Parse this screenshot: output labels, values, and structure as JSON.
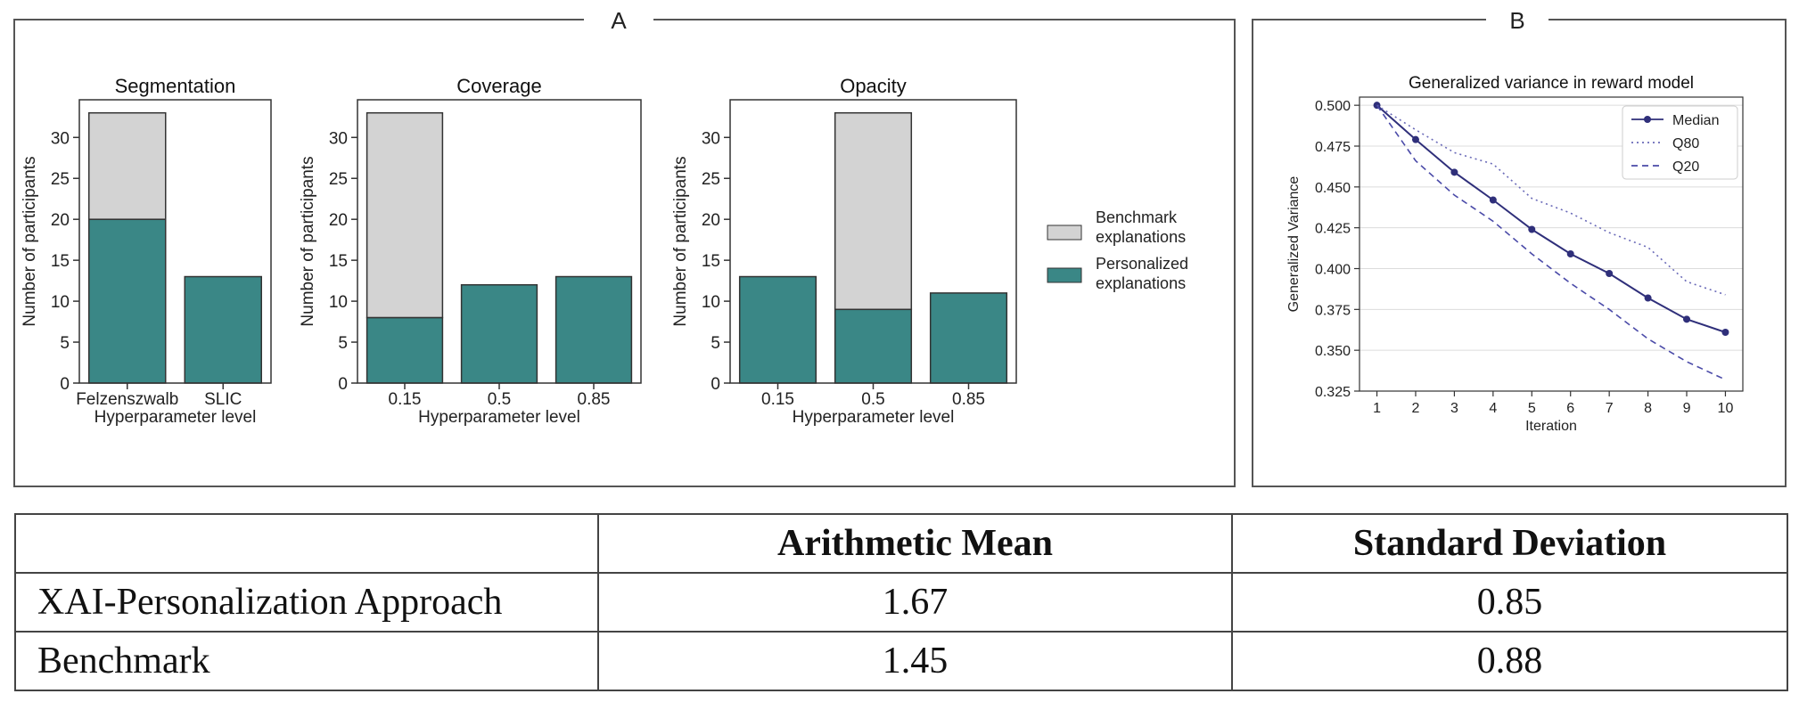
{
  "panels": {
    "a_label": "A",
    "b_label": "B"
  },
  "bar_legend": {
    "benchmark": [
      "Benchmark",
      "explanations"
    ],
    "personalized": [
      "Personalized",
      "explanations"
    ],
    "colors": {
      "benchmark": "#d3d3d3",
      "personalized": "#3a8786"
    }
  },
  "chart_data": [
    {
      "type": "bar",
      "stacked": true,
      "title": "Segmentation",
      "xlabel": "Hyperparameter level",
      "ylabel": "Number of participants",
      "categories": [
        "Felzenszwalb",
        "SLIC"
      ],
      "series": [
        {
          "name": "Personalized explanations",
          "values": [
            20,
            13
          ],
          "color": "#3a8786"
        },
        {
          "name": "Benchmark explanations",
          "values": [
            13,
            0
          ],
          "color": "#d3d3d3"
        }
      ],
      "ylim": [
        0,
        34.6
      ],
      "yticks": [
        0,
        5,
        10,
        15,
        20,
        25,
        30
      ]
    },
    {
      "type": "bar",
      "stacked": true,
      "title": "Coverage",
      "xlabel": "Hyperparameter level",
      "ylabel": "Number of participants",
      "categories": [
        "0.15",
        "0.5",
        "0.85"
      ],
      "series": [
        {
          "name": "Personalized explanations",
          "values": [
            8,
            12,
            13
          ],
          "color": "#3a8786"
        },
        {
          "name": "Benchmark explanations",
          "values": [
            25,
            0,
            0
          ],
          "color": "#d3d3d3"
        }
      ],
      "ylim": [
        0,
        34.6
      ],
      "yticks": [
        0,
        5,
        10,
        15,
        20,
        25,
        30
      ]
    },
    {
      "type": "bar",
      "stacked": true,
      "title": "Opacity",
      "xlabel": "Hyperparameter level",
      "ylabel": "Number of participants",
      "categories": [
        "0.15",
        "0.5",
        "0.85"
      ],
      "series": [
        {
          "name": "Personalized explanations",
          "values": [
            13,
            9,
            11
          ],
          "color": "#3a8786"
        },
        {
          "name": "Benchmark explanations",
          "values": [
            0,
            24,
            0
          ],
          "color": "#d3d3d3"
        }
      ],
      "ylim": [
        0,
        34.6
      ],
      "yticks": [
        0,
        5,
        10,
        15,
        20,
        25,
        30
      ]
    },
    {
      "type": "line",
      "title": "Generalized variance in reward model",
      "xlabel": "Iteration",
      "ylabel": "Generalized Variance",
      "x": [
        1,
        2,
        3,
        4,
        5,
        6,
        7,
        8,
        9,
        10
      ],
      "series": [
        {
          "name": "Median",
          "style": "solid-markers",
          "color": "#2f2f7a",
          "values": [
            0.5,
            0.479,
            0.459,
            0.442,
            0.424,
            0.409,
            0.397,
            0.382,
            0.369,
            0.361
          ]
        },
        {
          "name": "Q80",
          "style": "dotted",
          "color": "#6a6ab8",
          "values": [
            0.5,
            0.485,
            0.471,
            0.464,
            0.443,
            0.434,
            0.422,
            0.413,
            0.392,
            0.384
          ]
        },
        {
          "name": "Q20",
          "style": "dashed",
          "color": "#4a4aa8",
          "values": [
            0.5,
            0.466,
            0.445,
            0.429,
            0.409,
            0.391,
            0.375,
            0.357,
            0.343,
            0.332
          ]
        }
      ],
      "ylim": [
        0.325,
        0.505
      ],
      "yticks": [
        0.325,
        0.35,
        0.375,
        0.4,
        0.425,
        0.45,
        0.475,
        0.5
      ],
      "grid": true,
      "legend": "top-right"
    },
    {
      "type": "table",
      "columns": [
        "",
        "Arithmetic Mean",
        "Standard Deviation"
      ],
      "rows": [
        [
          "XAI-Personalization Approach",
          "1.67",
          "0.85"
        ],
        [
          "Benchmark",
          "1.45",
          "0.88"
        ]
      ]
    }
  ]
}
